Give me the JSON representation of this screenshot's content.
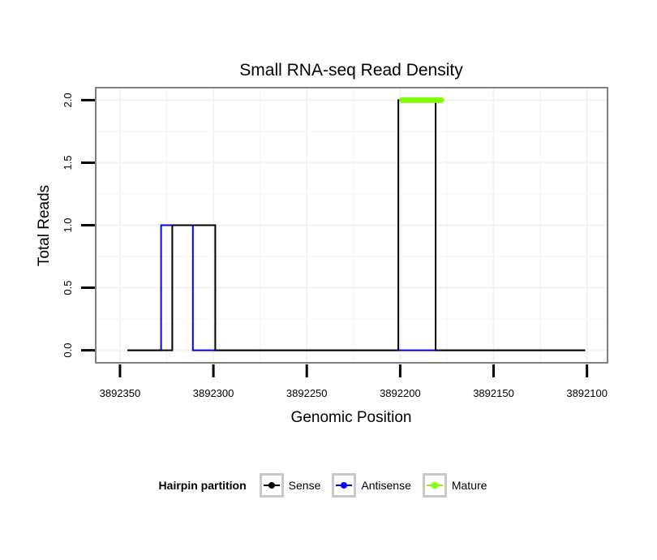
{
  "chart_data": {
    "type": "line",
    "title": "Small RNA-seq Read Density",
    "xlabel": "Genomic Position",
    "ylabel": "Total Reads",
    "x_reversed": true,
    "xlim": [
      3892363,
      3892089
    ],
    "ylim": [
      -0.1,
      2.1
    ],
    "x_ticks": [
      3892350,
      3892300,
      3892250,
      3892200,
      3892150,
      3892100
    ],
    "x_tick_labels": [
      "3892350",
      "3892300",
      "3892250",
      "3892200",
      "3892150",
      "3892100"
    ],
    "y_ticks": [
      0,
      0.5,
      1,
      1.5,
      2
    ],
    "y_tick_labels": [
      "0.0",
      "0.5",
      "1.0",
      "1.5",
      "2.0"
    ],
    "grid": true,
    "legend_position": "bottom",
    "legend_title": "Hairpin partition",
    "series": [
      {
        "name": "Sense",
        "color": "#000000",
        "x": [
          3892346,
          3892322,
          3892322,
          3892299,
          3892299,
          3892275,
          3892201,
          3892201,
          3892181,
          3892181,
          3892101
        ],
        "y": [
          0,
          0,
          1,
          1,
          0,
          0,
          0,
          2,
          2,
          0,
          0
        ]
      },
      {
        "name": "Antisense",
        "color": "#0000ff",
        "x": [
          3892346,
          3892328,
          3892328,
          3892311,
          3892311,
          3892101
        ],
        "y": [
          0,
          0,
          1,
          1,
          0,
          0
        ]
      },
      {
        "name": "Mature",
        "color": "#7fff00",
        "x": [
          3892199,
          3892178
        ],
        "y": [
          2,
          2
        ]
      }
    ]
  }
}
